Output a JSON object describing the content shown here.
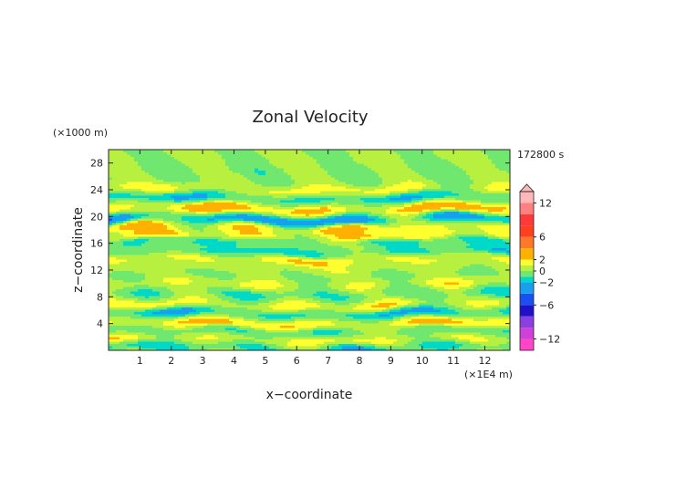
{
  "chart_data": {
    "type": "heatmap",
    "title": "Zonal Velocity",
    "xlabel": "x−coordinate",
    "ylabel": "z−coordinate",
    "x_unit": "(×1E4 m)",
    "y_unit": "(×1000 m)",
    "time_label": "172800 s",
    "xlim": [
      0,
      12.8
    ],
    "ylim": [
      0,
      30
    ],
    "x_ticks": [
      1,
      2,
      3,
      4,
      5,
      6,
      7,
      8,
      9,
      10,
      11,
      12
    ],
    "y_ticks": [
      4,
      8,
      12,
      16,
      20,
      24,
      28
    ],
    "grid": false,
    "colorbar": {
      "ticks": [
        "12",
        "6",
        "2",
        "0",
        "−2",
        "−6",
        "−12"
      ],
      "tick_values": [
        12,
        6,
        2,
        0,
        -2,
        -6,
        -12
      ],
      "vmin": -14,
      "vmax": 14,
      "levels": [
        {
          "from": -14,
          "to": -12,
          "color": "#ff44c8"
        },
        {
          "from": -12,
          "to": -10,
          "color": "#d040d8"
        },
        {
          "from": -10,
          "to": -8,
          "color": "#8a40e0"
        },
        {
          "from": -8,
          "to": -6,
          "color": "#2010c8"
        },
        {
          "from": -6,
          "to": -4,
          "color": "#1a50f0"
        },
        {
          "from": -4,
          "to": -2,
          "color": "#18a0f0"
        },
        {
          "from": -2,
          "to": -1,
          "color": "#00d8c8"
        },
        {
          "from": -1,
          "to": 0,
          "color": "#70e870"
        },
        {
          "from": 0,
          "to": 1,
          "color": "#b8f040"
        },
        {
          "from": 1,
          "to": 2,
          "color": "#ffff30"
        },
        {
          "from": 2,
          "to": 4,
          "color": "#ffb000"
        },
        {
          "from": 4,
          "to": 6,
          "color": "#ff7828"
        },
        {
          "from": 6,
          "to": 8,
          "color": "#ff4020"
        },
        {
          "from": 8,
          "to": 10,
          "color": "#ff3838"
        },
        {
          "from": 10,
          "to": 12,
          "color": "#ff8080"
        },
        {
          "from": 12,
          "to": 14,
          "color": "#ffb8b8"
        }
      ]
    },
    "bands": [
      {
        "z": 29.0,
        "amp": 0.2
      },
      {
        "z": 27.0,
        "amp": -0.3
      },
      {
        "z": 24.2,
        "amp": 2.0
      },
      {
        "z": 22.8,
        "amp": -2.5
      },
      {
        "z": 21.2,
        "amp": 4.0
      },
      {
        "z": 19.6,
        "amp": -4.5
      },
      {
        "z": 18.4,
        "amp": 3.0
      },
      {
        "z": 16.9,
        "amp": 4.5
      },
      {
        "z": 16.5,
        "amp": -3.8
      },
      {
        "z": 14.8,
        "amp": -2.0
      },
      {
        "z": 13.6,
        "amp": 2.5
      },
      {
        "z": 12.0,
        "amp": 3.0
      },
      {
        "z": 11.9,
        "amp": -2.5
      },
      {
        "z": 10.0,
        "amp": 1.5
      },
      {
        "z": 8.5,
        "amp": -1.2
      },
      {
        "z": 6.8,
        "amp": 2.2
      },
      {
        "z": 5.6,
        "amp": -2.8
      },
      {
        "z": 4.0,
        "amp": 3.2
      },
      {
        "z": 3.0,
        "amp": -1.5
      },
      {
        "z": 1.6,
        "amp": 1.8
      },
      {
        "z": 0.5,
        "amp": -2.0
      }
    ]
  }
}
